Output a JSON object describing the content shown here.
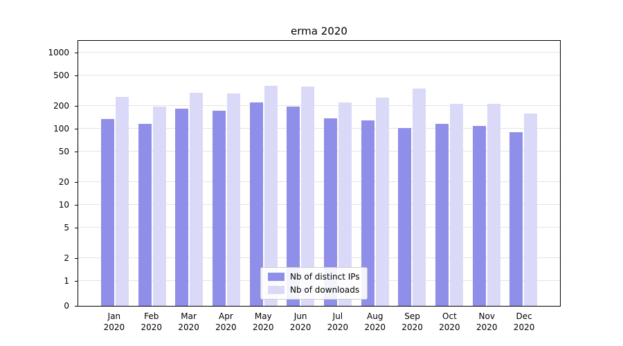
{
  "title": "erma 2020",
  "chart_data": {
    "type": "bar",
    "title": "erma 2020",
    "categories": [
      "Jan 2020",
      "Feb 2020",
      "Mar 2020",
      "Apr 2020",
      "May 2020",
      "Jun 2020",
      "Jul 2020",
      "Aug 2020",
      "Sep 2020",
      "Oct 2020",
      "Nov 2020",
      "Dec 2020"
    ],
    "series": [
      {
        "name": "Nb of distinct IPs",
        "color": "#8f8fe9",
        "values": [
          135,
          115,
          185,
          172,
          220,
          196,
          137,
          128,
          103,
          116,
          108,
          90
        ]
      },
      {
        "name": "Nb of downloads",
        "color": "#dadaf8",
        "values": [
          260,
          197,
          300,
          290,
          370,
          355,
          222,
          258,
          340,
          212,
          213,
          160
        ]
      }
    ],
    "yscale": "log",
    "yticks": [
      0,
      1,
      2,
      5,
      10,
      20,
      50,
      100,
      200,
      500,
      1000
    ],
    "ylim": [
      0,
      1000
    ],
    "xlabel": "",
    "ylabel": "",
    "grid": true,
    "legend_position": "lower center"
  }
}
